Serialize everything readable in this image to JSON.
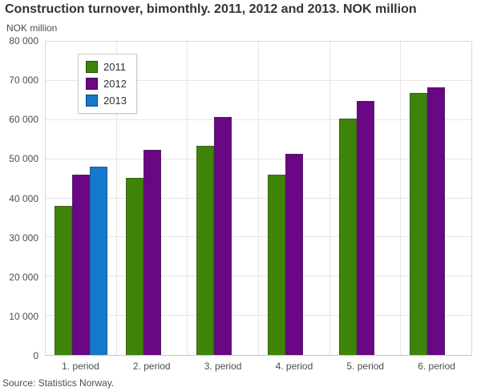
{
  "title": "Construction turnover, bimonthly. 2011, 2012 and 2013. NOK million",
  "y_axis_title": "NOK million",
  "source": "Source: Statistics Norway.",
  "chart_data": {
    "type": "bar",
    "title": "Construction turnover, bimonthly. 2011, 2012 and 2013. NOK million",
    "categories": [
      "1. period",
      "2. period",
      "3. period",
      "4. period",
      "5. period",
      "6. period"
    ],
    "series": [
      {
        "name": "2011",
        "color": "#3e8408",
        "values": [
          38000,
          45300,
          53500,
          46100,
          60400,
          66900
        ]
      },
      {
        "name": "2012",
        "color": "#690784",
        "values": [
          46000,
          52400,
          60700,
          51400,
          64900,
          68400
        ]
      },
      {
        "name": "2013",
        "color": "#1478cc",
        "values": [
          48000,
          null,
          null,
          null,
          null,
          null
        ]
      }
    ],
    "xlabel": "",
    "ylabel": "NOK million",
    "ylim": [
      0,
      80000
    ],
    "ytick_interval": 10000,
    "ytick_labels": [
      "0",
      "10 000",
      "20 000",
      "30 000",
      "40 000",
      "50 000",
      "60 000",
      "70 000",
      "80 000"
    ],
    "grid": true,
    "vertical_band_dividers": true,
    "legend_position": "top-left-inside"
  }
}
